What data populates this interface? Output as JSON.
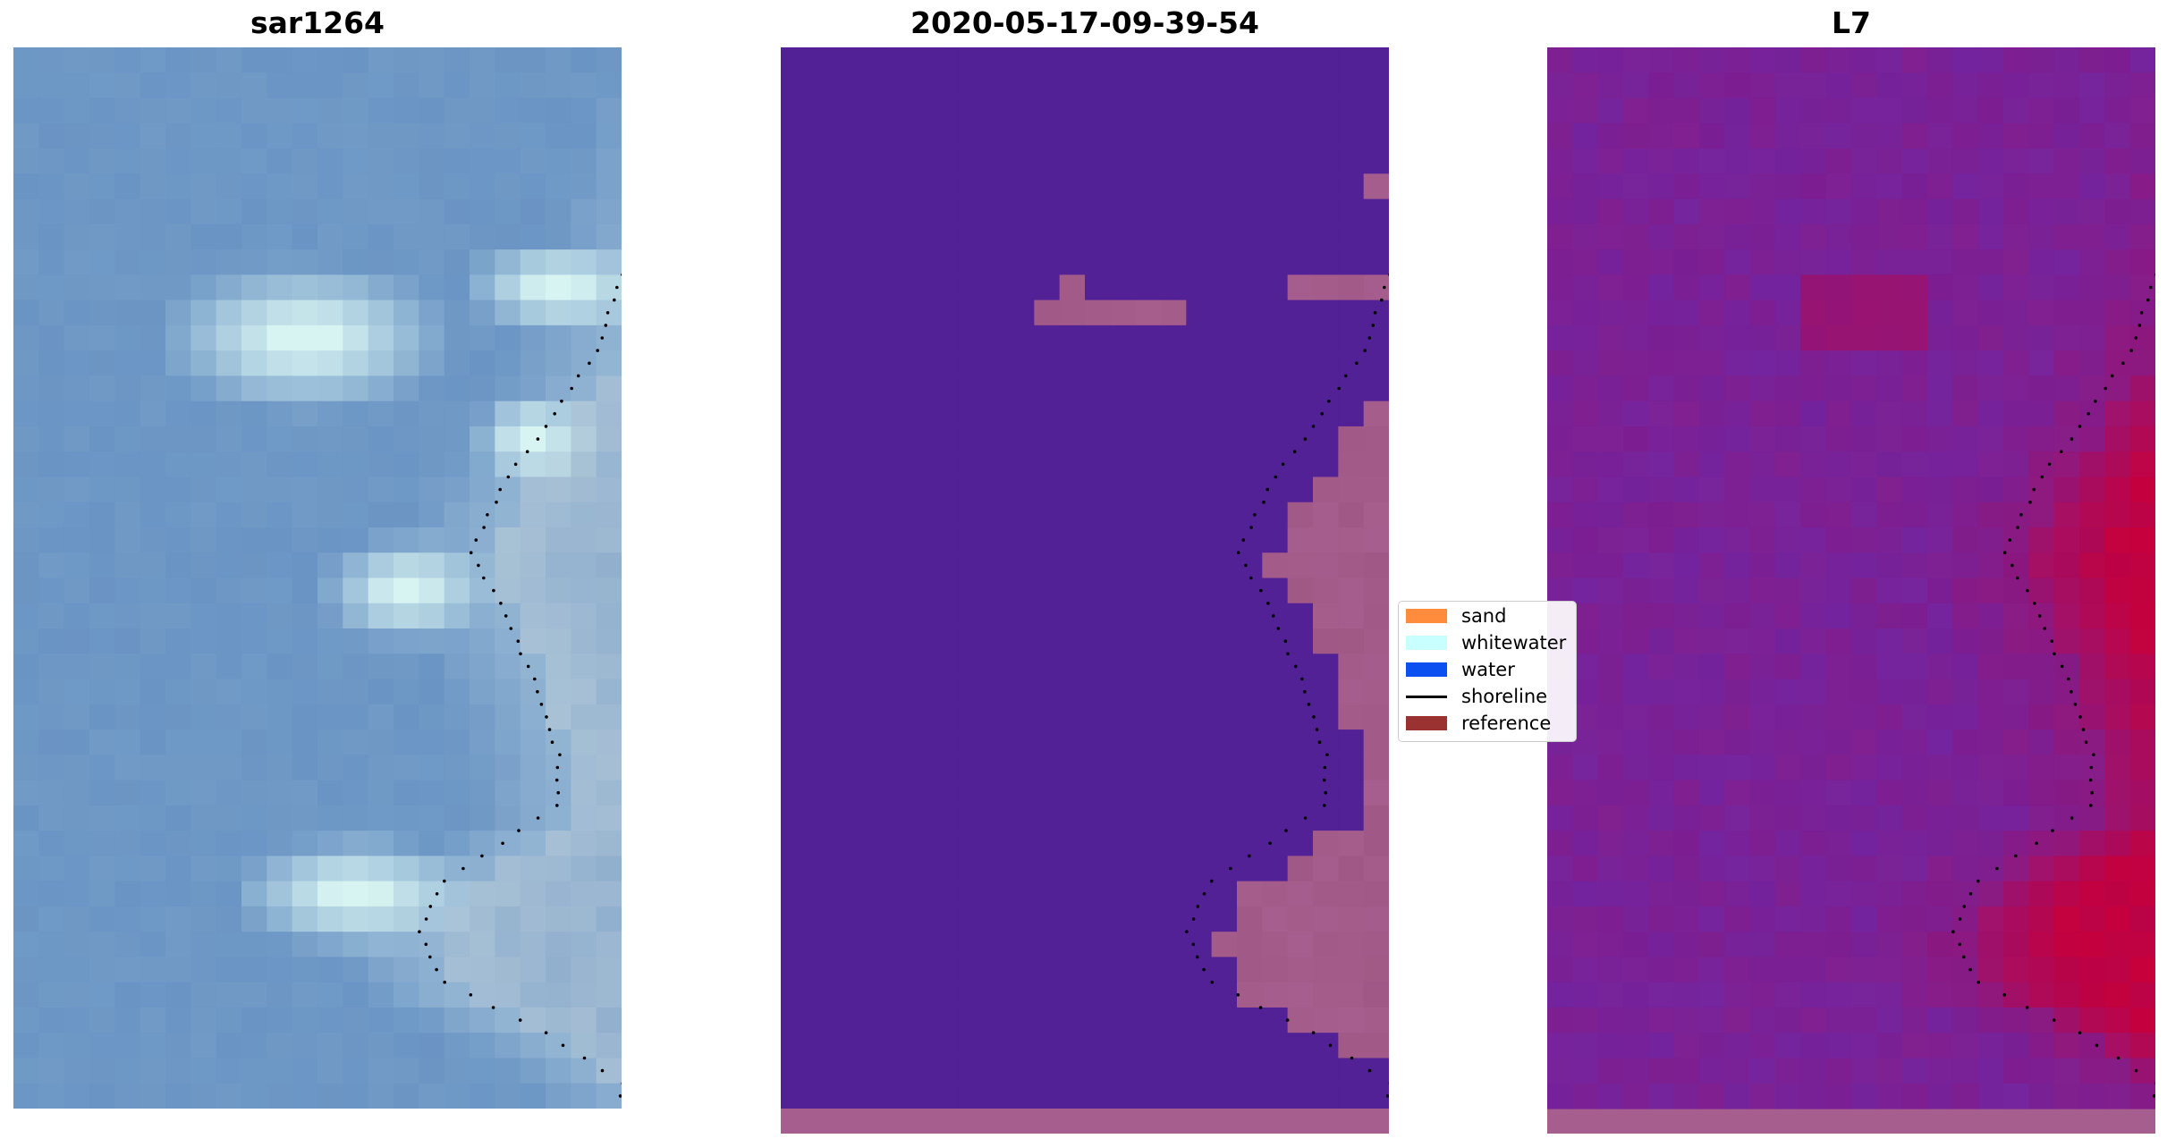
{
  "panels": [
    {
      "title": "sar1264",
      "kind": "rgb-image"
    },
    {
      "title": "2020-05-17-09-39-54",
      "kind": "classification"
    },
    {
      "title": "L7",
      "kind": "index-image"
    }
  ],
  "legend": {
    "items": [
      {
        "label": "sand",
        "color": "#ff8c3c",
        "kind": "patch"
      },
      {
        "label": "whitewater",
        "color": "#c8ffff",
        "kind": "patch"
      },
      {
        "label": "water",
        "color": "#0a50f0",
        "kind": "patch"
      },
      {
        "label": "shoreline",
        "color": "#000000",
        "kind": "line"
      },
      {
        "label": "reference",
        "color": "#9b3232",
        "kind": "patch"
      }
    ]
  },
  "colors": {
    "rgb_base": "#6a94c4",
    "rgb_whitewater": "#d8f4f2",
    "class_water": "#532196",
    "class_land": "#a65e8e",
    "index_low": "#75259e",
    "index_high": "#c8003a",
    "shoreline_dots": "#000000"
  }
}
